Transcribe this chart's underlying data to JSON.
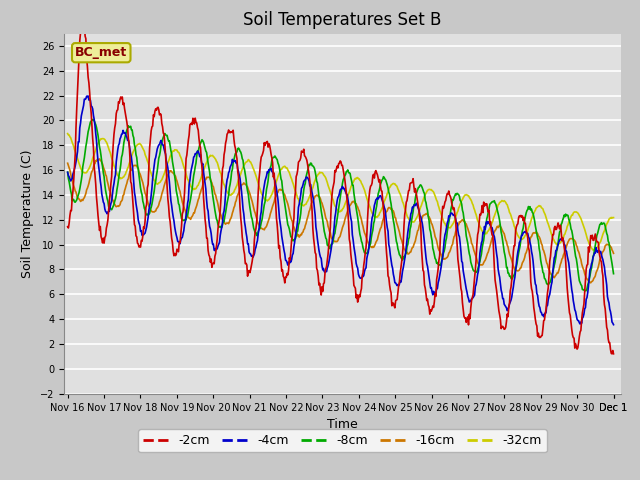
{
  "title": "Soil Temperatures Set B",
  "xlabel": "Time",
  "ylabel": "Soil Temperature (C)",
  "ylim": [
    -2,
    27
  ],
  "yticks": [
    -2,
    0,
    2,
    4,
    6,
    8,
    10,
    12,
    14,
    16,
    18,
    20,
    22,
    24,
    26
  ],
  "series_colors": {
    "-2cm": "#cc0000",
    "-4cm": "#0000cc",
    "-8cm": "#00aa00",
    "-16cm": "#cc7700",
    "-32cm": "#cccc00"
  },
  "legend_entries": [
    "-2cm",
    "-4cm",
    "-8cm",
    "-16cm",
    "-32cm"
  ],
  "annotation_text": "BC_met",
  "annotation_color": "#880000",
  "annotation_bg": "#eeee99",
  "background_color": "#c8c8c8",
  "plot_bg_color": "#e0e0e0",
  "grid_color": "#ffffff",
  "title_fontsize": 12,
  "axis_fontsize": 9,
  "tick_fontsize": 7,
  "legend_fontsize": 9
}
